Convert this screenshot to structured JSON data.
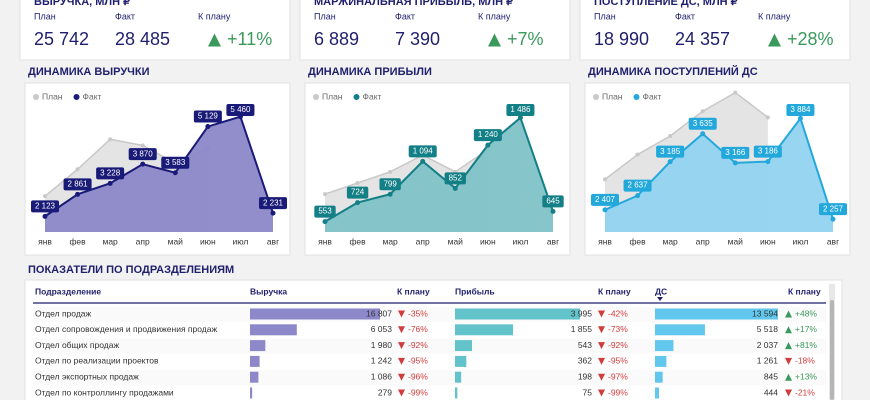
{
  "kpis": [
    {
      "title": "ВЫРУЧКА, МЛН ₽",
      "plan_label": "План",
      "plan": "25 742",
      "fact_label": "Факт",
      "fact": "28 485",
      "vs_label": "К плану",
      "vs": "+11%"
    },
    {
      "title": "МАРЖИНАЛЬНАЯ ПРИБЫЛЬ, МЛН ₽",
      "plan_label": "План",
      "plan": "6 889",
      "fact_label": "Факт",
      "fact": "7 390",
      "vs_label": "К плану",
      "vs": "+7%"
    },
    {
      "title": "ПОСТУПЛЕНИЕ ДС, МЛН ₽",
      "plan_label": "План",
      "plan": "18 990",
      "fact_label": "Факт",
      "fact": "24 357",
      "vs_label": "К плану",
      "vs": "+28%"
    }
  ],
  "chart_data": [
    {
      "type": "area",
      "title": "ДИНАМИКА ВЫРУЧКИ",
      "categories": [
        "янв",
        "фев",
        "мар",
        "апр",
        "май",
        "июн",
        "июл",
        "авг"
      ],
      "ylim": [
        1600,
        5850
      ],
      "series": [
        {
          "name": "План",
          "color": "#c8c8c8",
          "values": [
            2800,
            3700,
            4700,
            4500,
            3900,
            4400,
            null,
            null
          ]
        },
        {
          "name": "Факт",
          "color": "#1a1a78",
          "area_color": "#8c88c9",
          "values": [
            2123,
            2861,
            3228,
            3870,
            3583,
            5129,
            5460,
            2231
          ],
          "value_labels": [
            "2 123",
            "2 861",
            "3 228",
            "3 870",
            "3 583",
            "5 129",
            "5 460",
            "2 231"
          ]
        }
      ]
    },
    {
      "type": "area",
      "title": "ДИНАМИКА ПРИБЫЛИ",
      "categories": [
        "янв",
        "фев",
        "мар",
        "апр",
        "май",
        "июн",
        "июл",
        "авг"
      ],
      "ylim": [
        460,
        1600
      ],
      "series": [
        {
          "name": "План",
          "color": "#c8c8c8",
          "values": [
            800,
            900,
            1000,
            1150,
            1000,
            1200,
            null,
            null
          ]
        },
        {
          "name": "Факт",
          "color": "#137f86",
          "area_color": "#7fc2c6",
          "values": [
            553,
            724,
            799,
            1094,
            852,
            1240,
            1486,
            645
          ],
          "value_labels": [
            "553",
            "724",
            "799",
            "1 094",
            "852",
            "1 240",
            "1 486",
            "645"
          ]
        }
      ]
    },
    {
      "type": "area",
      "title": "ДИНАМИКА ПОСТУПЛЕНИЙ ДС",
      "categories": [
        "янв",
        "фев",
        "мар",
        "апр",
        "май",
        "июн",
        "июл",
        "авг"
      ],
      "ylim": [
        2050,
        4100
      ],
      "series": [
        {
          "name": "План",
          "color": "#c8c8c8",
          "values": [
            2900,
            3300,
            3600,
            4000,
            4300,
            3900,
            null,
            null
          ]
        },
        {
          "name": "Факт",
          "color": "#23a8dc",
          "area_color": "#92d3f0",
          "values": [
            2407,
            2637,
            3185,
            3635,
            3166,
            3186,
            3884,
            2257
          ],
          "value_labels": [
            "2 407",
            "2 637",
            "3 185",
            "3 635",
            "3 166",
            "3 186",
            "3 884",
            "2 257"
          ]
        }
      ]
    }
  ],
  "table": {
    "title": "ПОКАЗАТЕЛИ ПО ПОДРАЗДЕЛЕНИЯМ",
    "columns": [
      "Подразделение",
      "Выручка",
      "К плану",
      "Прибыль",
      "К плану",
      "ДС",
      "К плану"
    ],
    "rows": [
      [
        "Отдел продаж",
        {
          "value": 16807,
          "label": "16 807"
        },
        {
          "value": -35,
          "label": "-35%"
        },
        {
          "value": 3995,
          "label": "3 995"
        },
        {
          "value": -42,
          "label": "-42%"
        },
        {
          "value": 13594,
          "label": "13 594"
        },
        {
          "value": 48,
          "label": "+48%"
        }
      ],
      [
        "Отдел сопровождения и продвижения продаж",
        {
          "value": 6053,
          "label": "6 053"
        },
        {
          "value": -76,
          "label": "-76%"
        },
        {
          "value": 1855,
          "label": "1 855"
        },
        {
          "value": -73,
          "label": "-73%"
        },
        {
          "value": 5518,
          "label": "5 518"
        },
        {
          "value": 17,
          "label": "+17%"
        }
      ],
      [
        "Отдел общих продаж",
        {
          "value": 1980,
          "label": "1 980"
        },
        {
          "value": -92,
          "label": "-92%"
        },
        {
          "value": 543,
          "label": "543"
        },
        {
          "value": -92,
          "label": "-92%"
        },
        {
          "value": 2037,
          "label": "2 037"
        },
        {
          "value": 81,
          "label": "+81%"
        }
      ],
      [
        "Отдел по реализации проектов",
        {
          "value": 1242,
          "label": "1 242"
        },
        {
          "value": -95,
          "label": "-95%"
        },
        {
          "value": 362,
          "label": "362"
        },
        {
          "value": -95,
          "label": "-95%"
        },
        {
          "value": 1261,
          "label": "1 261"
        },
        {
          "value": -18,
          "label": "-18%"
        }
      ],
      [
        "Отдел экспортных продаж",
        {
          "value": 1086,
          "label": "1 086"
        },
        {
          "value": -96,
          "label": "-96%"
        },
        {
          "value": 198,
          "label": "198"
        },
        {
          "value": -97,
          "label": "-97%"
        },
        {
          "value": 845,
          "label": "845"
        },
        {
          "value": 13,
          "label": "+13%"
        }
      ],
      [
        "Отдел по контроллингу продажами",
        {
          "value": 279,
          "label": "279"
        },
        {
          "value": -99,
          "label": "-99%"
        },
        {
          "value": 75,
          "label": "75"
        },
        {
          "value": -99,
          "label": "-99%"
        },
        {
          "value": 444,
          "label": "444"
        },
        {
          "value": -21,
          "label": "-21%"
        }
      ]
    ]
  }
}
